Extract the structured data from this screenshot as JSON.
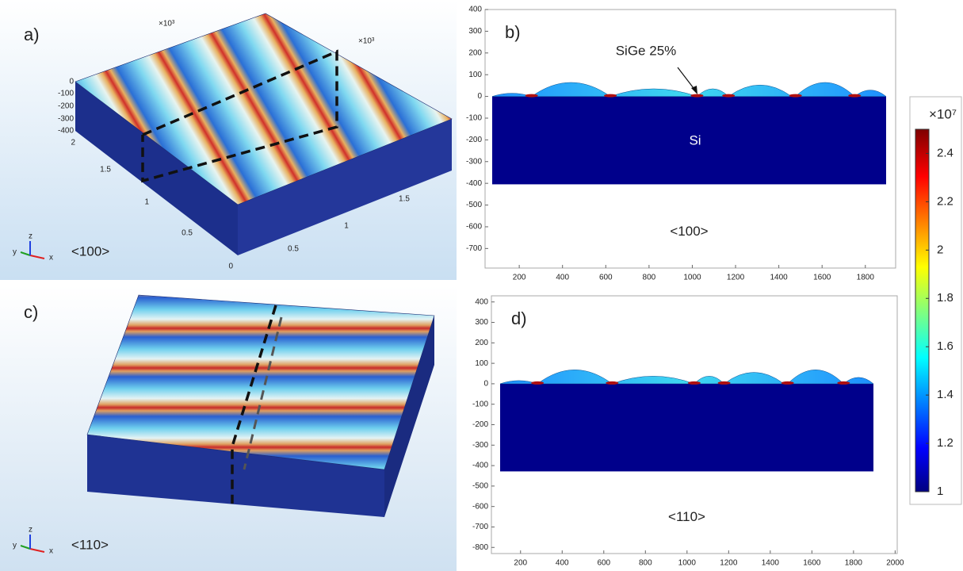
{
  "panel_a": {
    "label": "a)",
    "orientation": "<100>",
    "exponents": [
      "×10³",
      "×10³"
    ],
    "z_ticks": [
      0,
      -100,
      -200,
      -300,
      -400
    ],
    "y_ticks": [
      2,
      1.5,
      1,
      0.5,
      0
    ],
    "x_ticks": [
      0.5,
      1,
      1.5
    ],
    "triad": [
      "x",
      "y",
      "z"
    ]
  },
  "panel_b": {
    "label": "b)",
    "annotation": "SiGe 25%",
    "region": "Si",
    "orientation": "<100>",
    "xlim": [
      42,
      1940
    ],
    "ylim": [
      -790,
      400
    ],
    "xticks": [
      200,
      400,
      600,
      800,
      1000,
      1200,
      1400,
      1600,
      1800
    ],
    "yticks": [
      400,
      300,
      200,
      100,
      0,
      -100,
      -200,
      -300,
      -400,
      -500,
      -600,
      -700
    ]
  },
  "panel_c": {
    "label": "c)",
    "orientation": "<110>",
    "triad": [
      "x",
      "y",
      "z"
    ]
  },
  "panel_d": {
    "label": "d)",
    "orientation": "<110>",
    "xlim": [
      60,
      2010
    ],
    "ylim": [
      -830,
      430
    ],
    "xticks": [
      200,
      400,
      600,
      800,
      1000,
      1200,
      1400,
      1600,
      1800,
      2000
    ],
    "yticks": [
      400,
      300,
      200,
      100,
      0,
      -100,
      -200,
      -300,
      -400,
      -500,
      -600,
      -700,
      -800
    ]
  },
  "colorbar": {
    "exponent": "×10⁷",
    "clim": [
      1,
      2.5
    ],
    "ticks": [
      2.4,
      2.2,
      2,
      1.8,
      1.6,
      1.4,
      1.2,
      1
    ]
  }
}
